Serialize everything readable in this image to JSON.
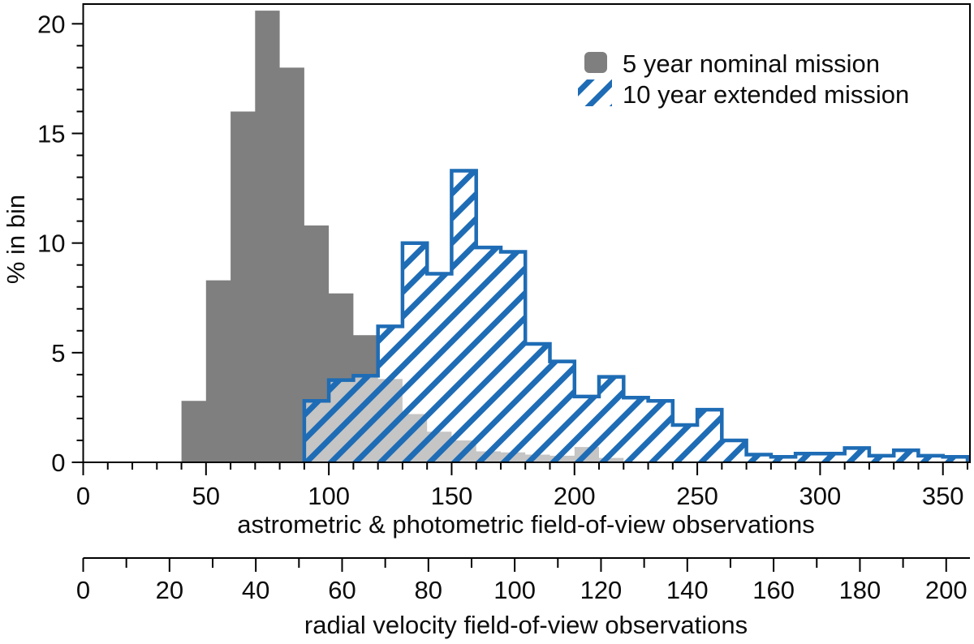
{
  "chart_data": {
    "type": "histogram",
    "ylabel": "% in bin",
    "xlabel_top": "astrometric & photometric field-of-view observations",
    "xlabel_bottom": "radial velocity field-of-view observations",
    "bin_width": 10,
    "grid": false,
    "legend_position": "top-right",
    "x_axis_main": {
      "min": 0,
      "max": 361,
      "major_ticks": [
        0,
        50,
        100,
        150,
        200,
        250,
        300,
        350
      ],
      "minor_step": 10
    },
    "x_axis_secondary": {
      "min": 0,
      "max": 205.5,
      "major_ticks": [
        0,
        20,
        40,
        60,
        80,
        100,
        120,
        140,
        160,
        180,
        200
      ],
      "minor_step": 10
    },
    "y_axis": {
      "min": 0,
      "max": 20.9,
      "major_ticks": [
        0,
        5,
        10,
        15,
        20
      ],
      "minor_step": 1
    },
    "series": [
      {
        "name": "5 year nominal mission",
        "style": "filled",
        "color": "#7f7f7f",
        "bin_start": 40,
        "values": [
          2.8,
          8.3,
          16.0,
          20.6,
          18.0,
          10.8,
          7.7,
          5.8,
          3.8,
          2.2,
          1.4,
          1.0,
          0.5,
          0.45,
          0.35,
          0.3,
          0.7,
          0.2
        ]
      },
      {
        "name": "10 year extended mission",
        "style": "hatched",
        "color": "#1e6cb5",
        "fill_white_alpha": 0.55,
        "bin_start": 90,
        "values": [
          2.8,
          3.75,
          3.95,
          6.2,
          10.0,
          8.6,
          13.3,
          9.8,
          9.6,
          5.4,
          4.6,
          3.0,
          3.9,
          2.95,
          2.8,
          1.7,
          2.4,
          1.0,
          0.35,
          0.25,
          0.4,
          0.4,
          0.65,
          0.3,
          0.55,
          0.3,
          0.25
        ]
      }
    ]
  }
}
